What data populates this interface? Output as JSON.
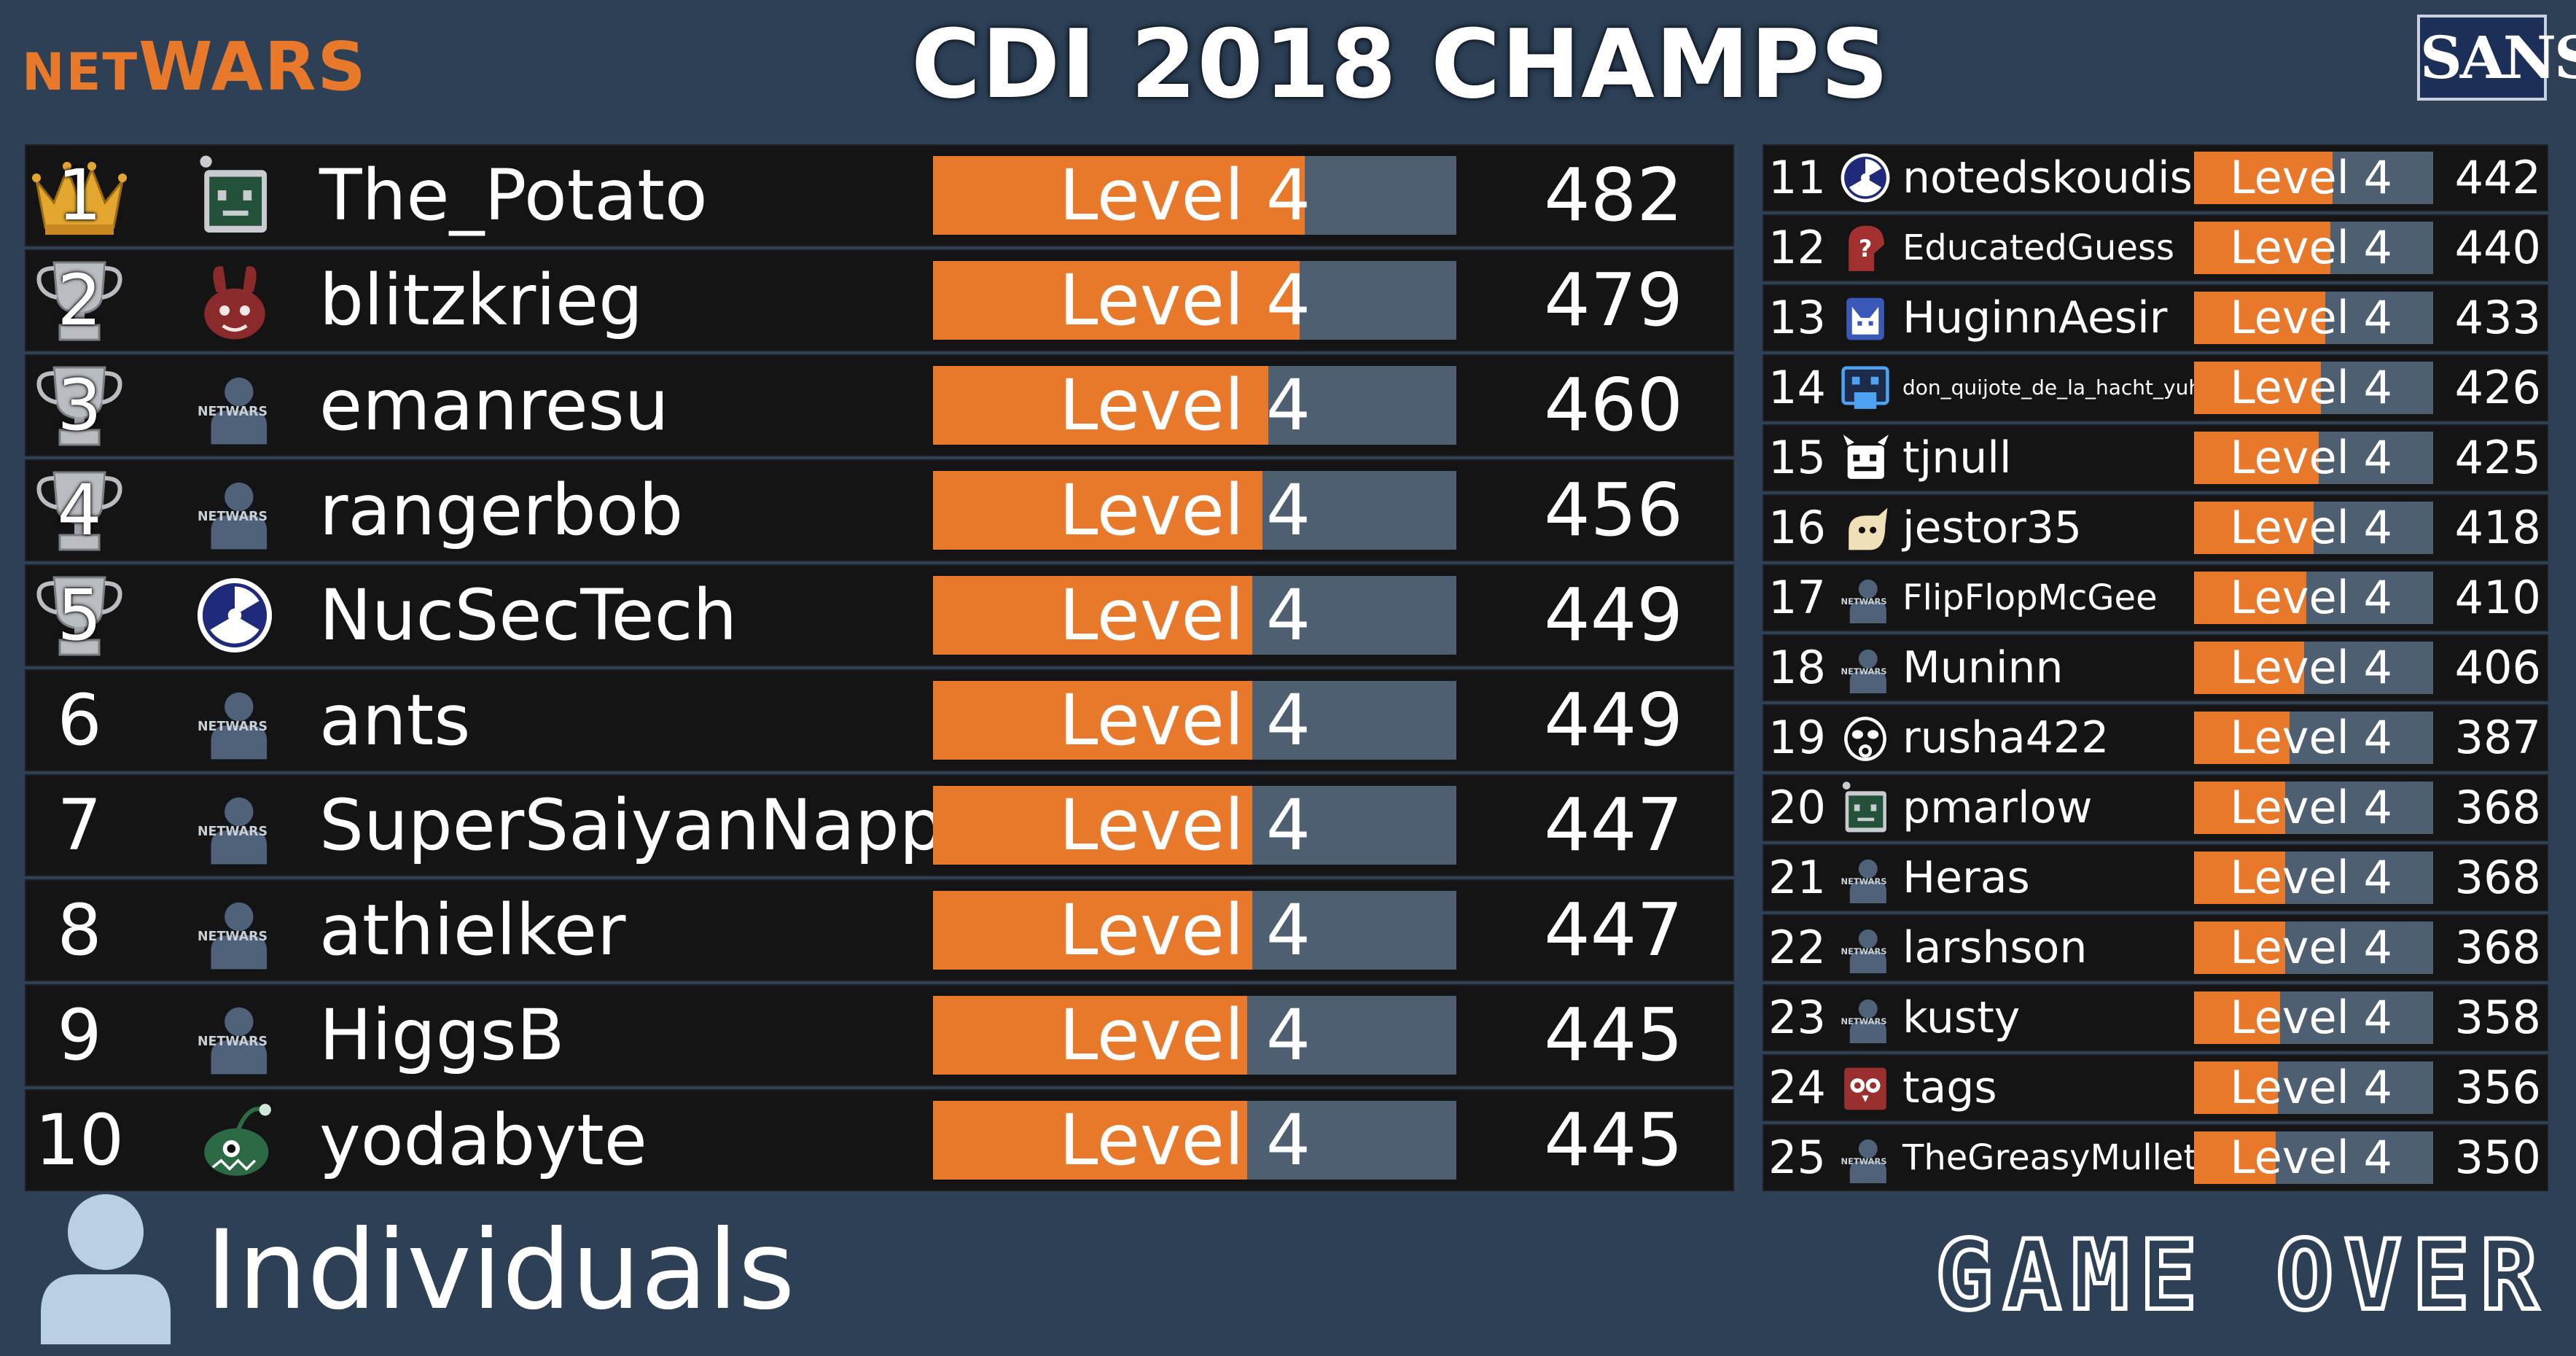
{
  "header": {
    "brand_left_prefix": "NET",
    "brand_left_suffix": "WARS",
    "title": "CDI 2018 CHAMPS",
    "brand_right": "SANS"
  },
  "colors": {
    "accent": "#e8782a",
    "bar_track": "#4f5f72",
    "background": "#2d4055",
    "row_bg": "#141414"
  },
  "left_board": [
    {
      "rank": "1",
      "name": "The_Potato",
      "level": "Level 4",
      "score": "482",
      "progress": 0.71,
      "award": "crown",
      "avatar": "robot-face-icon"
    },
    {
      "rank": "2",
      "name": "blitzkrieg",
      "level": "Level 4",
      "score": "479",
      "progress": 0.7,
      "award": "trophy",
      "avatar": "demon-rabbit-icon"
    },
    {
      "rank": "3",
      "name": "emanresu",
      "level": "Level 4",
      "score": "460",
      "progress": 0.64,
      "award": "trophy",
      "avatar": "default-user-icon"
    },
    {
      "rank": "4",
      "name": "rangerbob",
      "level": "Level 4",
      "score": "456",
      "progress": 0.63,
      "award": "trophy",
      "avatar": "default-user-icon"
    },
    {
      "rank": "5",
      "name": "NucSecTech",
      "level": "Level 4",
      "score": "449",
      "progress": 0.61,
      "award": "trophy",
      "avatar": "radiation-icon"
    },
    {
      "rank": "6",
      "name": "ants",
      "level": "Level 4",
      "score": "449",
      "progress": 0.61,
      "award": "",
      "avatar": "default-user-icon"
    },
    {
      "rank": "7",
      "name": "SuperSaiyanNappa",
      "level": "Level 4",
      "score": "447",
      "progress": 0.61,
      "award": "",
      "avatar": "default-user-icon"
    },
    {
      "rank": "8",
      "name": "athielker",
      "level": "Level 4",
      "score": "447",
      "progress": 0.61,
      "award": "",
      "avatar": "default-user-icon"
    },
    {
      "rank": "9",
      "name": "HiggsB",
      "level": "Level 4",
      "score": "445",
      "progress": 0.6,
      "award": "",
      "avatar": "default-user-icon"
    },
    {
      "rank": "10",
      "name": "yodabyte",
      "level": "Level 4",
      "score": "445",
      "progress": 0.6,
      "award": "",
      "avatar": "anglerfish-icon"
    }
  ],
  "right_board": [
    {
      "rank": "11",
      "name": "notedskoudis",
      "level": "Level 4",
      "score": "442",
      "progress": 0.58,
      "avatar": "radiation-icon"
    },
    {
      "rank": "12",
      "name": "EducatedGuess",
      "level": "Level 4",
      "score": "440",
      "progress": 0.57,
      "avatar": "question-head-icon"
    },
    {
      "rank": "13",
      "name": "HuginnAesir",
      "level": "Level 4",
      "score": "433",
      "progress": 0.55,
      "avatar": "viking-icon"
    },
    {
      "rank": "14",
      "name": "don_quijote_de_la_hacht_yuh",
      "level": "Level 4",
      "score": "426",
      "progress": 0.53,
      "avatar": "windmill-icon"
    },
    {
      "rank": "15",
      "name": "tjnull",
      "level": "Level 4",
      "score": "425",
      "progress": 0.52,
      "avatar": "monster-icon"
    },
    {
      "rank": "16",
      "name": "jestor35",
      "level": "Level 4",
      "score": "418",
      "progress": 0.5,
      "avatar": "jester-icon"
    },
    {
      "rank": "17",
      "name": "FlipFlopMcGee",
      "level": "Level 4",
      "score": "410",
      "progress": 0.47,
      "avatar": "default-user-icon"
    },
    {
      "rank": "18",
      "name": "Muninn",
      "level": "Level 4",
      "score": "406",
      "progress": 0.46,
      "avatar": "default-user-icon"
    },
    {
      "rank": "19",
      "name": "rusha422",
      "level": "Level 4",
      "score": "387",
      "progress": 0.4,
      "avatar": "gas-mask-icon"
    },
    {
      "rank": "20",
      "name": "pmarlow",
      "level": "Level 4",
      "score": "368",
      "progress": 0.38,
      "avatar": "robot-face-icon"
    },
    {
      "rank": "21",
      "name": "Heras",
      "level": "Level 4",
      "score": "368",
      "progress": 0.38,
      "avatar": "default-user-icon"
    },
    {
      "rank": "22",
      "name": "larshson",
      "level": "Level 4",
      "score": "368",
      "progress": 0.38,
      "avatar": "default-user-icon"
    },
    {
      "rank": "23",
      "name": "kusty",
      "level": "Level 4",
      "score": "358",
      "progress": 0.36,
      "avatar": "default-user-icon"
    },
    {
      "rank": "24",
      "name": "tags",
      "level": "Level 4",
      "score": "356",
      "progress": 0.35,
      "avatar": "owl-icon"
    },
    {
      "rank": "25",
      "name": "TheGreasyMullet",
      "level": "Level 4",
      "score": "350",
      "progress": 0.34,
      "avatar": "default-user-icon"
    }
  ],
  "footer": {
    "category": "Individuals",
    "status": "GAME OVER"
  },
  "avatar_watermark": "NETWARS"
}
